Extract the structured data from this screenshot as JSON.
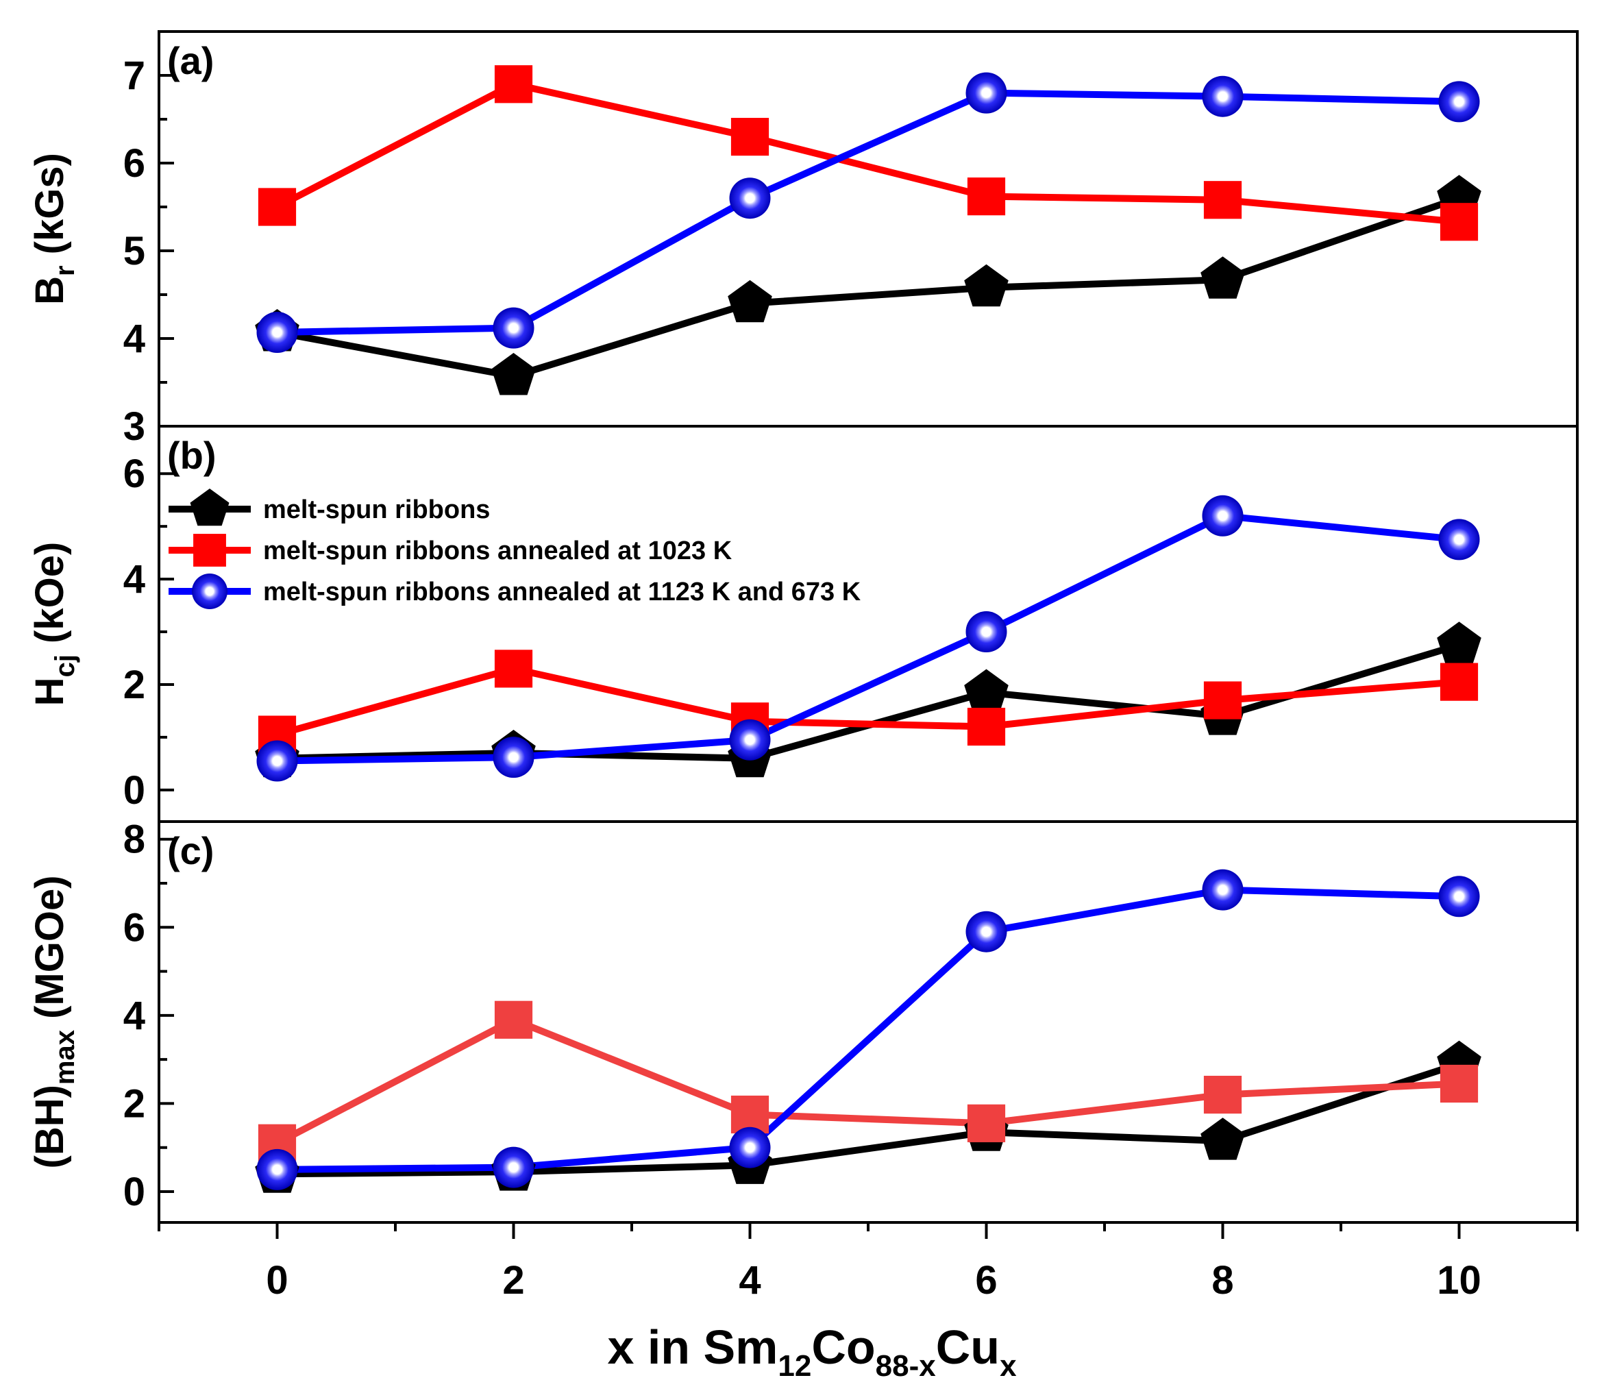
{
  "figure": {
    "x_label": {
      "prefix": "x in Sm",
      "sub1": "12",
      "mid1": "Co",
      "sub2": "88-x",
      "mid2": "Cu",
      "sub3": "x"
    }
  },
  "colors": {
    "melt_spun": "#000000",
    "annealed_1023": "#ff0000",
    "annealed_1023_light": "#ef4040",
    "annealed_1123_673": "#0000ff"
  },
  "legend": [
    {
      "label": "melt-spun ribbons",
      "marker": "pentagon",
      "color": "#000000"
    },
    {
      "label": "melt-spun ribbons annealed at 1023 K",
      "marker": "square",
      "color": "#ff0000"
    },
    {
      "label": "melt-spun ribbons annealed at 1123 K and 673 K",
      "marker": "sphere",
      "color": "#0000ff"
    }
  ],
  "chart_data": [
    {
      "type": "line",
      "panel_label": "(a)",
      "ylabel": {
        "main": "B",
        "sub": "r",
        "rest": " (kGs)"
      },
      "xlim": [
        -1,
        11
      ],
      "ylim": [
        3,
        7.5
      ],
      "yticks": [
        3,
        4,
        5,
        6,
        7
      ],
      "x": [
        0,
        2,
        4,
        6,
        8,
        10
      ],
      "series": [
        {
          "name": "melt-spun ribbons",
          "marker": "pentagon",
          "color": "#000000",
          "values": [
            4.07,
            3.57,
            4.4,
            4.58,
            4.67,
            5.6
          ]
        },
        {
          "name": "melt-spun ribbons annealed at 1023 K",
          "marker": "square",
          "color": "#ff0000",
          "values": [
            5.5,
            6.9,
            6.3,
            5.62,
            5.58,
            5.33
          ]
        },
        {
          "name": "melt-spun ribbons annealed at 1123 K and 673 K",
          "marker": "sphere",
          "color": "#0000ff",
          "values": [
            4.07,
            4.12,
            5.6,
            6.8,
            6.76,
            6.7
          ]
        }
      ]
    },
    {
      "type": "line",
      "panel_label": "(b)",
      "ylabel": {
        "main": "H",
        "sub": "cj",
        "rest": " (kOe)"
      },
      "xlim": [
        -1,
        11
      ],
      "ylim": [
        -0.6,
        6.9
      ],
      "yticks": [
        0,
        2,
        4,
        6
      ],
      "x": [
        0,
        2,
        4,
        6,
        8,
        10
      ],
      "series": [
        {
          "name": "melt-spun ribbons",
          "marker": "pentagon",
          "color": "#000000",
          "values": [
            0.6,
            0.7,
            0.6,
            1.85,
            1.4,
            2.75
          ]
        },
        {
          "name": "melt-spun ribbons annealed at 1023 K",
          "marker": "square",
          "color": "#ff0000",
          "values": [
            1.05,
            2.3,
            1.3,
            1.2,
            1.7,
            2.05
          ]
        },
        {
          "name": "melt-spun ribbons annealed at 1123 K and 673 K",
          "marker": "sphere",
          "color": "#0000ff",
          "values": [
            0.55,
            0.62,
            0.95,
            3.0,
            5.2,
            4.75
          ]
        }
      ]
    },
    {
      "type": "line",
      "panel_label": "(c)",
      "ylabel": {
        "main": "(BH)",
        "sub": "max",
        "rest": " (MGOe)"
      },
      "xlim": [
        -1,
        11
      ],
      "ylim": [
        -0.7,
        8.4
      ],
      "yticks": [
        0,
        2,
        4,
        6,
        8
      ],
      "x": [
        0,
        2,
        4,
        6,
        8,
        10
      ],
      "series": [
        {
          "name": "melt-spun ribbons",
          "marker": "pentagon",
          "color": "#000000",
          "values": [
            0.4,
            0.45,
            0.6,
            1.35,
            1.15,
            2.9
          ]
        },
        {
          "name": "melt-spun ribbons annealed at 1023 K",
          "marker": "square",
          "color": "#ef4040",
          "values": [
            1.1,
            3.9,
            1.75,
            1.55,
            2.2,
            2.45
          ]
        },
        {
          "name": "melt-spun ribbons annealed at 1123 K and 673 K",
          "marker": "sphere",
          "color": "#0000ff",
          "values": [
            0.5,
            0.55,
            1.0,
            5.9,
            6.85,
            6.7
          ]
        }
      ]
    }
  ],
  "x_axis": {
    "ticks": [
      0,
      2,
      4,
      6,
      8,
      10
    ]
  }
}
